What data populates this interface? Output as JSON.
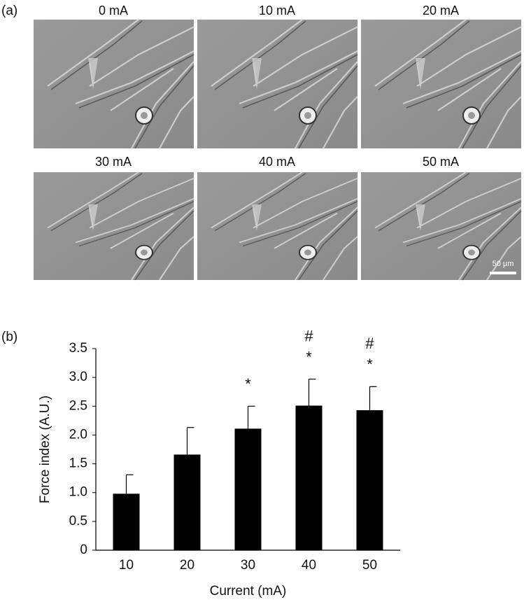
{
  "panel_a": {
    "label": "(a)",
    "images": [
      "0 mA",
      "10 mA",
      "20 mA",
      "30 mA",
      "40 mA",
      "50 mA"
    ],
    "scale_bar": "50 µm"
  },
  "panel_b": {
    "label": "(b)"
  },
  "chart_data": {
    "type": "bar",
    "x_label": "Current (mA)",
    "y_label": "Force index (A.U.)",
    "categories": [
      "10",
      "20",
      "30",
      "40",
      "50"
    ],
    "values": [
      0.98,
      1.66,
      2.11,
      2.51,
      2.43
    ],
    "errors": [
      0.33,
      0.47,
      0.39,
      0.46,
      0.41
    ],
    "color": "#000000",
    "ylim": [
      0,
      3.5
    ],
    "yticks": [
      0,
      0.5,
      {
        "value": 1,
        "label": "1.0"
      },
      1.5,
      {
        "value": 2,
        "label": "2.0"
      },
      2.5,
      {
        "value": 3,
        "label": "3.0"
      },
      3.5
    ],
    "annotations": [
      {
        "text": "*",
        "category": "30"
      },
      {
        "text": "*",
        "category": "40"
      },
      {
        "text": "#",
        "category": "40"
      },
      {
        "text": "*",
        "category": "50"
      },
      {
        "text": "#",
        "category": "50"
      }
    ]
  }
}
